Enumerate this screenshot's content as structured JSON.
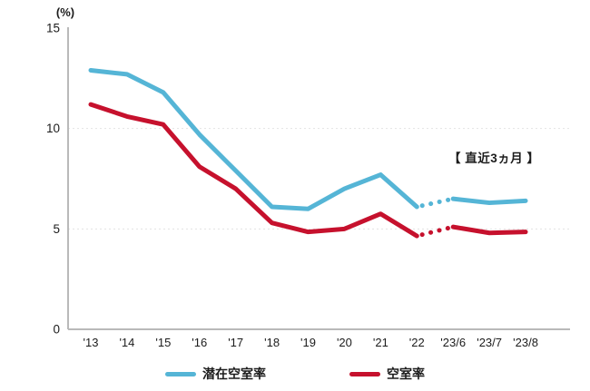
{
  "chart_data": {
    "type": "line",
    "title": "",
    "unit_label": "(%)",
    "categories": [
      "'13",
      "'14",
      "'15",
      "'16",
      "'17",
      "'18",
      "'19",
      "'20",
      "'21",
      "'22",
      "'23/6",
      "'23/7",
      "'23/8"
    ],
    "series": [
      {
        "name": "潜在空室率",
        "color": "#55b5d6",
        "values": [
          12.9,
          12.7,
          11.8,
          9.7,
          7.9,
          6.1,
          6.0,
          7.0,
          7.7,
          6.1,
          6.5,
          6.3,
          6.4
        ]
      },
      {
        "name": "空室率",
        "color": "#c6112d",
        "values": [
          11.2,
          10.6,
          10.2,
          8.1,
          7.0,
          5.3,
          4.85,
          5.0,
          5.75,
          4.65,
          5.1,
          4.8,
          4.85
        ]
      }
    ],
    "dotted_segment": {
      "from_index": 9,
      "to_index": 10,
      "note": "dotted between '22 and '23/6"
    },
    "annotation": "【 直近3ヵ月 】",
    "y_ticks": [
      0,
      5,
      10,
      15
    ],
    "ylim": [
      0,
      15
    ],
    "grid_lines_at": [
      5,
      10
    ],
    "legend_position": "bottom-center",
    "colors": {
      "axis": "#b9b9b9",
      "grid": "#e3e3e3",
      "text": "#1c1c1c",
      "background": "#ffffff"
    }
  }
}
